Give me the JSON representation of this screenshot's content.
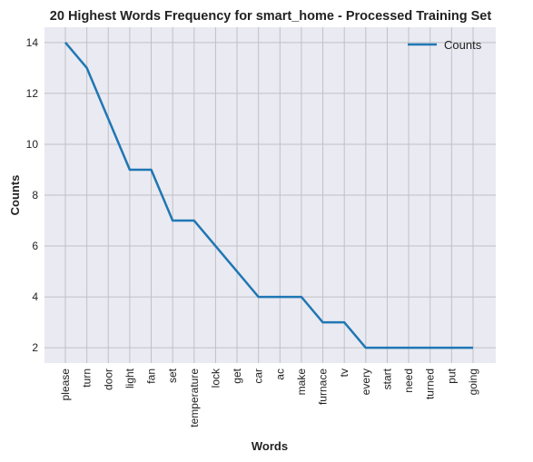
{
  "chart_data": {
    "type": "line",
    "title": "20 Highest Words Frequency for smart_home - Processed Training Set",
    "xlabel": "Words",
    "ylabel": "Counts",
    "categories": [
      "please",
      "turn",
      "door",
      "light",
      "fan",
      "set",
      "temperature",
      "lock",
      "get",
      "car",
      "ac",
      "make",
      "furnace",
      "tv",
      "every",
      "start",
      "need",
      "turned",
      "put",
      "going"
    ],
    "series": [
      {
        "name": "Counts",
        "values": [
          14,
          13,
          11,
          9,
          9,
          7,
          7,
          6,
          5,
          4,
          4,
          4,
          3,
          3,
          2,
          2,
          2,
          2,
          2,
          2
        ]
      }
    ],
    "yticks": [
      2,
      4,
      6,
      8,
      10,
      12,
      14
    ],
    "ylim": [
      1.4,
      14.6
    ],
    "grid": true,
    "legend_position": "top-right",
    "colors": {
      "line": "#1f77b4",
      "background": "#eaeaf2",
      "grid": "#c0c0c4"
    }
  }
}
